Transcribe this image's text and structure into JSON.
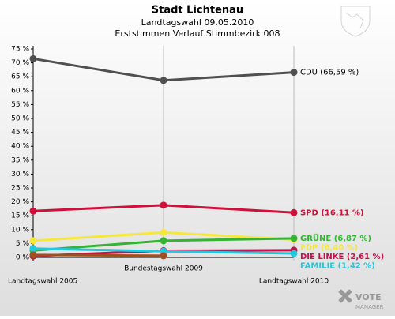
{
  "chart_data": {
    "type": "line",
    "title": "Stadt Lichtenau",
    "subtitle": "Landtagswahl 09.05.2010",
    "subtitle2": "Erststimmen Verlauf Stimmbezirk 008",
    "categories": [
      "Landtagswahl 2005",
      "Bundestagswahl 2009",
      "Landtagswahl 2010"
    ],
    "ylim": [
      0,
      75
    ],
    "yticks": [
      {
        "value": 0,
        "label": "0 %"
      },
      {
        "value": 5,
        "label": "5 %"
      },
      {
        "value": 10,
        "label": "10 %"
      },
      {
        "value": 15,
        "label": "15 %"
      },
      {
        "value": 20,
        "label": "20 %"
      },
      {
        "value": 25,
        "label": "25 %"
      },
      {
        "value": 30,
        "label": "30 %"
      },
      {
        "value": 35,
        "label": "35 %"
      },
      {
        "value": 40,
        "label": "40 %"
      },
      {
        "value": 45,
        "label": "45 %"
      },
      {
        "value": 50,
        "label": "50 %"
      },
      {
        "value": 55,
        "label": "55 %"
      },
      {
        "value": 60,
        "label": "60 %"
      },
      {
        "value": 65,
        "label": "65 %"
      },
      {
        "value": 70,
        "label": "70 %"
      },
      {
        "value": 75,
        "label": "75 %"
      }
    ],
    "series": [
      {
        "name": "CDU",
        "color": "#505050",
        "values": [
          71.5,
          63.7,
          66.59
        ],
        "end_label": "CDU (66,59 %)"
      },
      {
        "name": "SPD",
        "color": "#d0103a",
        "values": [
          16.7,
          18.8,
          16.11
        ],
        "end_label": "SPD (16,11 %)"
      },
      {
        "name": "FDP",
        "color": "#f5e83a",
        "values": [
          6.0,
          9.0,
          6.4
        ],
        "end_label": "FDP (6,40 %)"
      },
      {
        "name": "GRÜNE",
        "color": "#33b533",
        "values": [
          2.5,
          6.0,
          6.87
        ],
        "end_label": "GRÜNE (6,87 %)"
      },
      {
        "name": "DIE LINKE",
        "color": "#c8104a",
        "values": [
          0.5,
          2.4,
          2.61
        ],
        "end_label": "DIE LINKE (2,61 %)"
      },
      {
        "name": "FAMILIE",
        "color": "#20c8e0",
        "values": [
          3.2,
          2.2,
          1.42
        ],
        "end_label": "FAMILIE (1,42 %)"
      },
      {
        "color": "#a0501e",
        "values": [
          0.9,
          0.6,
          null
        ]
      }
    ],
    "logo": {
      "line1": "VOTE",
      "line2": "MANAGER"
    }
  }
}
